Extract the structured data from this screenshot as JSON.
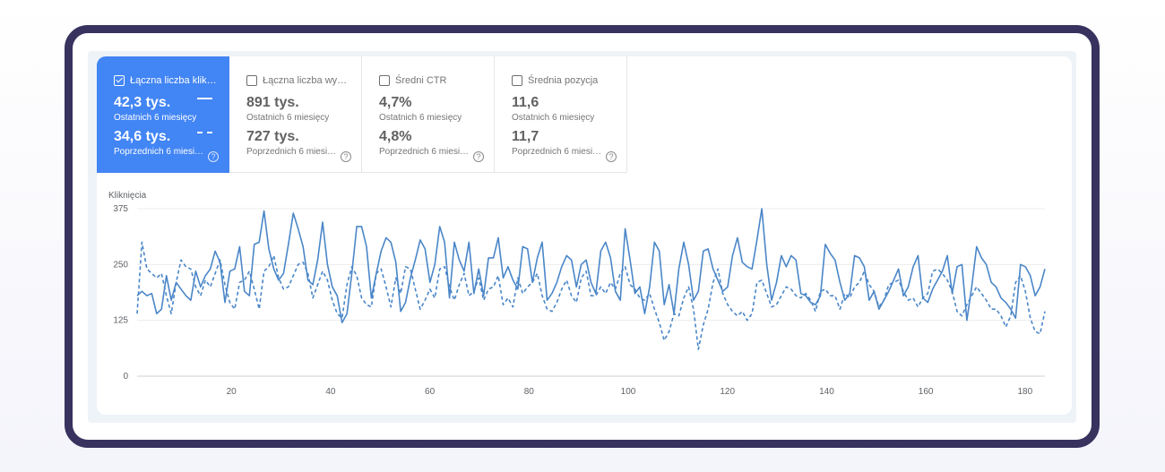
{
  "metrics": [
    {
      "label": "Łączna liczba klik…",
      "checked": true,
      "current_value": "42,3 tys.",
      "current_period": "Ostatnich 6 miesięcy",
      "previous_value": "34,6 tys.",
      "previous_period": "Poprzednich 6 miesi…",
      "help": "?"
    },
    {
      "label": "Łączna liczba wy…",
      "checked": false,
      "current_value": "891 tys.",
      "current_period": "Ostatnich 6 miesięcy",
      "previous_value": "727 tys.",
      "previous_period": "Poprzednich 6 miesi…",
      "help": "?"
    },
    {
      "label": "Średni CTR",
      "checked": false,
      "current_value": "4,7%",
      "current_period": "Ostatnich 6 miesięcy",
      "previous_value": "4,8%",
      "previous_period": "Poprzednich 6 miesi…",
      "help": "?"
    },
    {
      "label": "Średnia pozycja",
      "checked": false,
      "current_value": "11,6",
      "current_period": "Ostatnich 6 miesięcy",
      "previous_value": "11,7",
      "previous_period": "Poprzednich 6 miesi…",
      "help": "?"
    }
  ],
  "colors": {
    "accent": "#4285f4",
    "line": "#4a86c8",
    "frame": "#37325e"
  },
  "chart_data": {
    "type": "line",
    "ylabel": "Kliknięcia",
    "ylim": [
      0,
      375
    ],
    "xlim": [
      1,
      184
    ],
    "yticks": [
      0,
      125,
      250,
      375
    ],
    "xticks": [
      20,
      40,
      60,
      80,
      100,
      120,
      140,
      160,
      180
    ],
    "grid": true,
    "series": [
      {
        "style": "solid",
        "values": [
          180,
          190,
          180,
          185,
          140,
          150,
          225,
          170,
          210,
          195,
          180,
          170,
          235,
          200,
          225,
          240,
          280,
          255,
          165,
          235,
          240,
          290,
          190,
          180,
          295,
          300,
          370,
          285,
          240,
          215,
          230,
          295,
          365,
          330,
          290,
          215,
          205,
          260,
          345,
          250,
          200,
          180,
          120,
          140,
          230,
          335,
          335,
          290,
          175,
          230,
          280,
          310,
          300,
          255,
          145,
          165,
          220,
          260,
          305,
          285,
          210,
          250,
          335,
          300,
          175,
          300,
          260,
          235,
          300,
          185,
          240,
          180,
          265,
          265,
          310,
          220,
          245,
          215,
          195,
          290,
          285,
          210,
          265,
          300,
          170,
          185,
          210,
          245,
          270,
          260,
          200,
          250,
          260,
          210,
          185,
          280,
          300,
          265,
          190,
          170,
          330,
          260,
          185,
          200,
          140,
          200,
          300,
          280,
          160,
          205,
          140,
          240,
          300,
          250,
          170,
          190,
          280,
          285,
          240,
          215,
          190,
          200,
          270,
          310,
          255,
          245,
          240,
          305,
          375,
          250,
          170,
          210,
          270,
          245,
          270,
          260,
          185,
          180,
          165,
          160,
          180,
          295,
          275,
          260,
          210,
          170,
          185,
          270,
          265,
          245,
          170,
          190,
          150,
          170,
          190,
          215,
          240,
          180,
          200,
          245,
          270,
          175,
          165,
          195,
          215,
          235,
          270,
          185,
          245,
          250,
          125,
          200,
          290,
          265,
          250,
          210,
          200,
          175,
          165,
          150,
          130,
          250,
          245,
          225,
          180,
          200,
          240
        ]
      },
      {
        "style": "dashed",
        "values": [
          140,
          300,
          240,
          230,
          220,
          230,
          180,
          140,
          210,
          260,
          245,
          240,
          200,
          180,
          215,
          200,
          230,
          260,
          205,
          165,
          150,
          210,
          215,
          235,
          195,
          150,
          235,
          245,
          270,
          220,
          195,
          200,
          225,
          250,
          255,
          230,
          175,
          205,
          235,
          215,
          170,
          140,
          130,
          205,
          245,
          225,
          175,
          160,
          155,
          230,
          240,
          200,
          155,
          220,
          185,
          245,
          240,
          195,
          150,
          170,
          195,
          175,
          240,
          245,
          200,
          170,
          205,
          230,
          180,
          190,
          220,
          170,
          195,
          200,
          225,
          160,
          175,
          155,
          220,
          185,
          200,
          210,
          230,
          180,
          150,
          145,
          165,
          195,
          215,
          180,
          165,
          220,
          235,
          180,
          180,
          200,
          185,
          210,
          195,
          230,
          245,
          205,
          195,
          175,
          170,
          185,
          150,
          120,
          80,
          100,
          140,
          135,
          175,
          200,
          150,
          60,
          115,
          150,
          210,
          240,
          185,
          160,
          145,
          135,
          145,
          125,
          140,
          210,
          215,
          185,
          155,
          160,
          180,
          200,
          195,
          180,
          175,
          185,
          170,
          145,
          190,
          195,
          180,
          180,
          150,
          185,
          175,
          200,
          210,
          235,
          205,
          190,
          155,
          170,
          205,
          210,
          215,
          190,
          170,
          175,
          155,
          175,
          185,
          235,
          240,
          230,
          215,
          190,
          145,
          135,
          160,
          180,
          200,
          185,
          170,
          150,
          150,
          135,
          110,
          135,
          210,
          225,
          190,
          130,
          100,
          95,
          145
        ]
      }
    ]
  }
}
